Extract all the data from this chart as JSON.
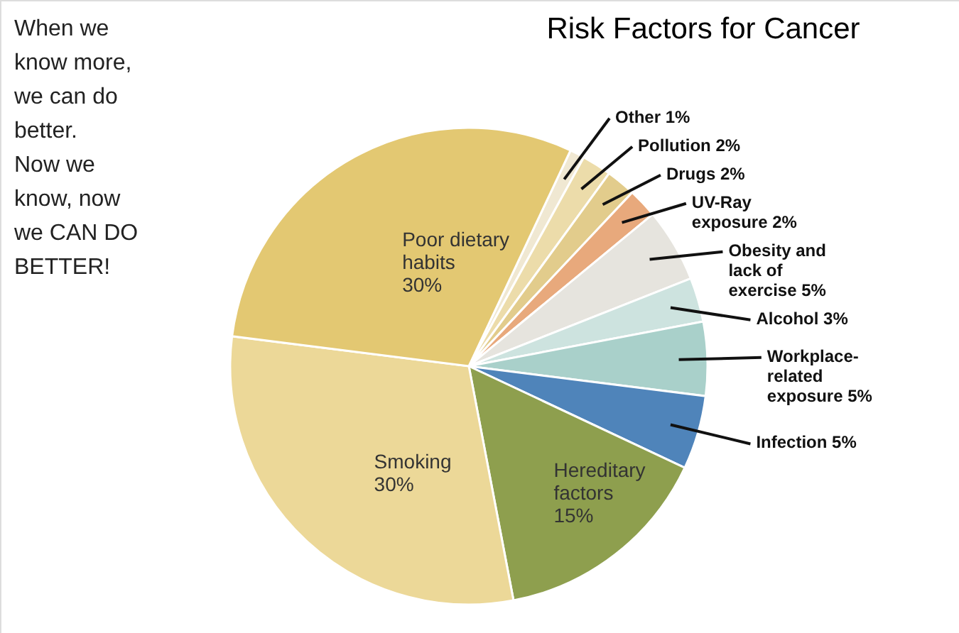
{
  "chart_data": {
    "type": "pie",
    "title": "Risk Factors for Cancer",
    "categories": [
      "Other",
      "Pollution",
      "Drugs",
      "UV-Ray exposure",
      "Obesity and lack of exercise",
      "Alcohol",
      "Workplace-related exposure",
      "Infection",
      "Hereditary factors",
      "Smoking",
      "Poor dietary habits"
    ],
    "values": [
      1,
      2,
      2,
      2,
      5,
      3,
      5,
      5,
      15,
      30,
      30
    ],
    "value_labels": [
      "1%",
      "2%",
      "2%",
      "2%",
      "5%",
      "3%",
      "5%",
      "5%",
      "15%",
      "30%",
      "30%"
    ],
    "colors": [
      "#f0e8d2",
      "#ecdcaa",
      "#e2cc8c",
      "#e8a97c",
      "#e6e4de",
      "#cde3df",
      "#a9d0ca",
      "#4f84ba",
      "#8e9f4e",
      "#ecd898",
      "#e3c872"
    ],
    "annotations": [
      "When we know more, we can do better.  Now we know, now we CAN DO BETTER!"
    ]
  }
}
